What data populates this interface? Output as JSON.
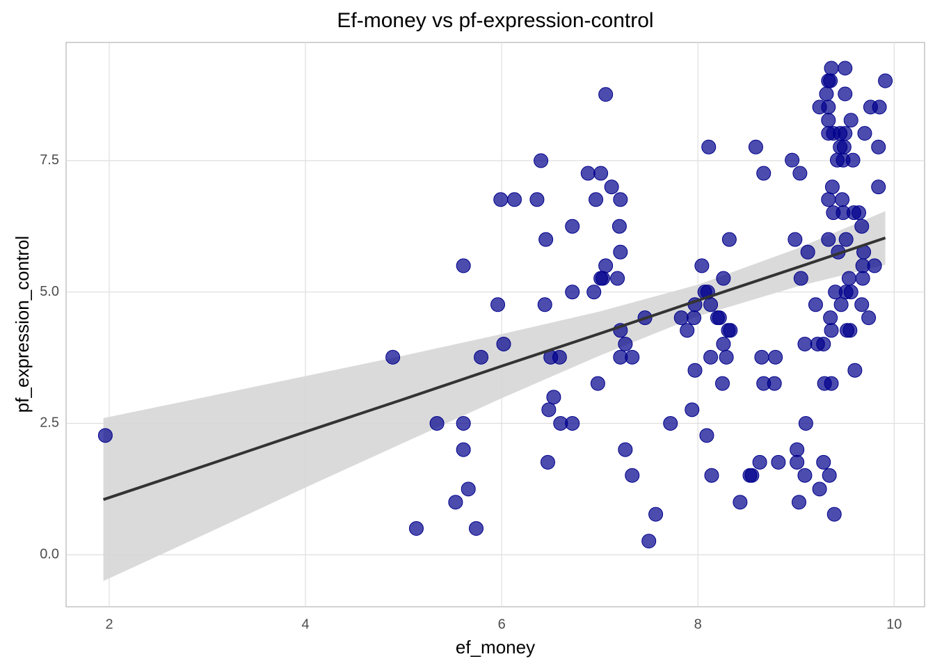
{
  "chart_data": {
    "type": "scatter",
    "title": "Ef-money vs pf-expression-control",
    "x_label": "ef_money",
    "y_label": "pf_expression_control",
    "xlim": [
      1.56,
      10.31
    ],
    "ylim": [
      -0.99,
      9.75
    ],
    "xticks": [
      2,
      4,
      6,
      8,
      10
    ],
    "yticks": [
      {
        "value": 0,
        "label": "0.0"
      },
      {
        "value": 2.5,
        "label": "2.5"
      },
      {
        "value": 5,
        "label": "5.0"
      },
      {
        "value": 7.5,
        "label": "7.5"
      }
    ],
    "grid": true,
    "color": "#00008b",
    "x": [
      1.96,
      4.89,
      5.13,
      5.34,
      5.53,
      5.61,
      5.61,
      5.61,
      5.66,
      5.74,
      5.79,
      5.96,
      5.99,
      6.02,
      6.13,
      6.36,
      6.4,
      6.44,
      6.45,
      6.47,
      6.48,
      6.5,
      6.53,
      6.59,
      6.6,
      6.72,
      6.72,
      6.72,
      6.88,
      6.94,
      6.96,
      6.98,
      7.01,
      7.01,
      7.03,
      7.06,
      7.06,
      7.12,
      7.18,
      7.2,
      7.21,
      7.21,
      7.21,
      7.21,
      7.26,
      7.26,
      7.33,
      7.33,
      7.46,
      7.5,
      7.57,
      7.72,
      7.83,
      7.89,
      7.94,
      7.96,
      7.97,
      7.97,
      8.04,
      8.07,
      8.1,
      8.09,
      8.11,
      8.13,
      8.13,
      8.14,
      8.2,
      8.22,
      8.26,
      8.25,
      8.26,
      8.29,
      8.31,
      8.33,
      8.32,
      8.43,
      8.53,
      8.55,
      8.59,
      8.63,
      8.65,
      8.67,
      8.67,
      8.78,
      8.79,
      8.82,
      8.96,
      8.99,
      9.01,
      9.01,
      9.03,
      9.04,
      9.05,
      9.09,
      9.09,
      9.1,
      9.12,
      9.2,
      9.22,
      9.24,
      9.24,
      9.28,
      9.28,
      9.29,
      9.31,
      9.33,
      9.33,
      9.33,
      9.33,
      9.33,
      9.33,
      9.34,
      9.35,
      9.35,
      9.36,
      9.36,
      9.36,
      9.37,
      9.38,
      9.38,
      9.39,
      9.4,
      9.42,
      9.43,
      9.45,
      9.45,
      9.46,
      9.47,
      9.48,
      9.48,
      9.49,
      9.5,
      9.5,
      9.5,
      9.51,
      9.51,
      9.52,
      9.54,
      9.55,
      9.56,
      9.56,
      9.58,
      9.59,
      9.6,
      9.64,
      9.67,
      9.67,
      9.68,
      9.68,
      9.69,
      9.7,
      9.74,
      9.76,
      9.8,
      9.84,
      9.84,
      9.85,
      9.91
    ],
    "values": [
      2.27,
      3.76,
      0.5,
      2.5,
      1.0,
      5.5,
      2.5,
      2.0,
      1.25,
      0.5,
      3.76,
      4.76,
      6.76,
      4.01,
      6.76,
      6.76,
      7.5,
      4.76,
      6.0,
      1.76,
      2.76,
      3.76,
      3.0,
      3.76,
      2.5,
      6.25,
      5.0,
      2.5,
      7.26,
      5.0,
      6.76,
      3.26,
      7.26,
      5.26,
      5.26,
      8.76,
      5.5,
      7.0,
      5.26,
      6.25,
      6.76,
      5.76,
      4.27,
      3.76,
      4.01,
      2.0,
      3.76,
      1.51,
      4.51,
      0.26,
      0.77,
      2.5,
      4.51,
      4.27,
      2.76,
      4.51,
      4.76,
      3.51,
      5.5,
      5.0,
      5.0,
      2.27,
      7.76,
      3.76,
      4.76,
      1.51,
      4.51,
      4.51,
      4.01,
      3.26,
      5.26,
      3.76,
      4.27,
      4.27,
      6.0,
      1.0,
      1.51,
      1.51,
      7.76,
      1.76,
      3.76,
      7.26,
      3.26,
      3.26,
      3.76,
      1.76,
      7.51,
      6.0,
      1.76,
      2.0,
      1.0,
      7.26,
      5.26,
      4.01,
      1.51,
      2.5,
      5.76,
      4.76,
      4.01,
      1.25,
      8.52,
      1.76,
      4.01,
      3.26,
      8.77,
      9.02,
      8.02,
      6.76,
      6.0,
      8.52,
      8.27,
      1.51,
      9.02,
      4.51,
      3.26,
      9.26,
      4.27,
      7.0,
      6.51,
      8.02,
      0.77,
      5.0,
      7.51,
      5.76,
      8.02,
      7.76,
      4.76,
      6.76,
      6.51,
      7.51,
      7.76,
      9.26,
      8.77,
      8.02,
      5.0,
      6.0,
      4.27,
      5.26,
      4.27,
      5.0,
      8.27,
      7.51,
      6.51,
      3.51,
      6.51,
      6.25,
      4.76,
      5.5,
      5.26,
      5.76,
      8.02,
      4.51,
      8.52,
      5.5,
      7.0,
      7.76,
      8.52,
      9.02
    ],
    "fit": {
      "color": "#333333",
      "x": [
        1.94,
        3,
        4,
        5,
        6,
        7,
        8,
        9,
        9.91
      ],
      "values": [
        1.05,
        1.71,
        2.34,
        2.96,
        3.59,
        4.21,
        4.84,
        5.46,
        6.03
      ]
    },
    "band": {
      "color": "#d6d6d6",
      "x": [
        1.94,
        3,
        4,
        5,
        6,
        7,
        8,
        9,
        9.91
      ],
      "lower": [
        -0.5,
        0.41,
        1.28,
        2.13,
        2.98,
        3.79,
        4.54,
        5.1,
        5.52
      ],
      "upper": [
        2.6,
        3.01,
        3.4,
        3.79,
        4.2,
        4.63,
        5.14,
        5.82,
        6.54
      ]
    }
  }
}
